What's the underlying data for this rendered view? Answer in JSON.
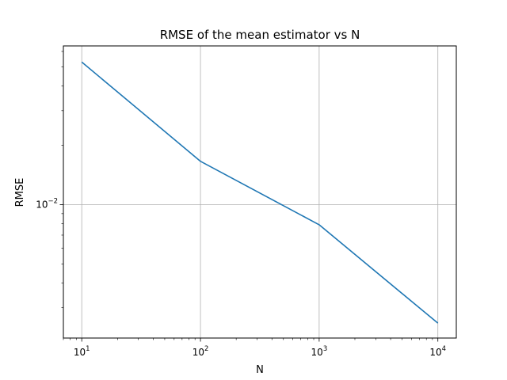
{
  "chart_data": {
    "type": "line",
    "title": "RMSE of the mean estimator vs N",
    "xlabel": "N",
    "ylabel": "RMSE",
    "xscale": "log",
    "yscale": "log",
    "grid": true,
    "xlim": [
      7.0,
      14300
    ],
    "ylim": [
      0.0021,
      0.064
    ],
    "x_ticks": [
      {
        "value": 10,
        "base": "10",
        "exp": "1"
      },
      {
        "value": 100,
        "base": "10",
        "exp": "2"
      },
      {
        "value": 1000,
        "base": "10",
        "exp": "3"
      },
      {
        "value": 10000,
        "base": "10",
        "exp": "4"
      }
    ],
    "y_ticks": [
      {
        "value": 0.01,
        "base": "10",
        "exp": "−2"
      }
    ],
    "series": [
      {
        "color": "#1f77b4",
        "x": [
          10,
          100,
          1000,
          10000
        ],
        "y": [
          0.053,
          0.0166,
          0.0079,
          0.0025
        ]
      }
    ]
  }
}
